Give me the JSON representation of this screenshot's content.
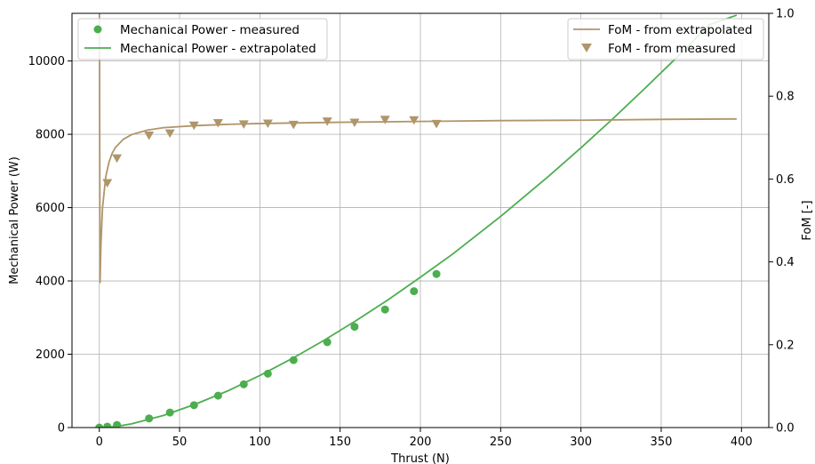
{
  "chart_data": {
    "type": "line",
    "xlabel": "Thrust (N)",
    "ylabel_left": "Mechanical Power (W)",
    "ylabel_right": "FoM [-]",
    "xlim": [
      -17,
      417
    ],
    "ylim_left": [
      0,
      11300
    ],
    "ylim_right": [
      0,
      1.0
    ],
    "x_ticks": [
      0,
      50,
      100,
      150,
      200,
      250,
      300,
      350,
      400
    ],
    "y_left_ticks": [
      0,
      2000,
      4000,
      6000,
      8000,
      10000
    ],
    "y_right_ticks": [
      0.0,
      0.2,
      0.4,
      0.6,
      0.8,
      1.0
    ],
    "grid": true,
    "legend_left": {
      "placement": "upper-left",
      "entries": [
        "Mechanical Power - measured",
        "Mechanical Power - extrapolated"
      ]
    },
    "legend_right": {
      "placement": "upper-right",
      "entries": [
        "FoM - from extrapolated",
        "FoM - from measured"
      ]
    },
    "colors": {
      "power": "#4cae4f",
      "fom": "#b0956a"
    },
    "series": [
      {
        "name": "Mechanical Power - measured",
        "axis": "left",
        "style": "markers-circle",
        "x": [
          0,
          5,
          11,
          31,
          44,
          59,
          74,
          90,
          105,
          121,
          142,
          159,
          178,
          196,
          210
        ],
        "y": [
          0,
          25,
          70,
          250,
          410,
          610,
          870,
          1180,
          1470,
          1840,
          2330,
          2750,
          3220,
          3720,
          4190
        ]
      },
      {
        "name": "Mechanical Power - extrapolated",
        "axis": "left",
        "style": "line",
        "x": [
          0,
          10,
          20,
          40,
          60,
          80,
          100,
          120,
          140,
          160,
          180,
          200,
          220,
          250,
          280,
          300,
          320,
          340,
          360,
          380,
          397
        ],
        "y": [
          0,
          26,
          100,
          330,
          640,
          1000,
          1420,
          1880,
          2380,
          2920,
          3490,
          4100,
          4730,
          5760,
          6860,
          7630,
          8430,
          9260,
          10110,
          10990,
          11250
        ]
      },
      {
        "name": "FoM - from extrapolated",
        "axis": "right",
        "style": "line",
        "x": [
          0.05,
          0.5,
          1,
          2,
          4,
          6,
          8,
          10,
          15,
          20,
          30,
          40,
          60,
          80,
          100,
          150,
          200,
          250,
          300,
          350,
          397
        ],
        "y": [
          1.05,
          0.35,
          0.44,
          0.53,
          0.605,
          0.64,
          0.662,
          0.676,
          0.696,
          0.707,
          0.718,
          0.724,
          0.729,
          0.732,
          0.734,
          0.737,
          0.739,
          0.741,
          0.742,
          0.744,
          0.745
        ]
      },
      {
        "name": "FoM - from measured",
        "axis": "right",
        "style": "markers-triangle-down",
        "x": [
          5,
          11,
          31,
          44,
          59,
          74,
          90,
          105,
          121,
          142,
          159,
          178,
          196,
          210
        ],
        "y": [
          0.59,
          0.65,
          0.705,
          0.71,
          0.729,
          0.735,
          0.732,
          0.734,
          0.731,
          0.739,
          0.736,
          0.743,
          0.742,
          0.733
        ]
      }
    ]
  }
}
